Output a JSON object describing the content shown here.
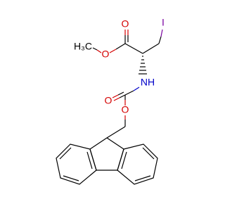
{
  "nodes": [
    {
      "label": "O"
    },
    {
      "label": "O"
    },
    {
      "label": "H₃C"
    },
    {
      "label": "I"
    },
    {
      "label": "NH"
    },
    {
      "label": "O"
    },
    {
      "label": "O"
    }
  ]
}
